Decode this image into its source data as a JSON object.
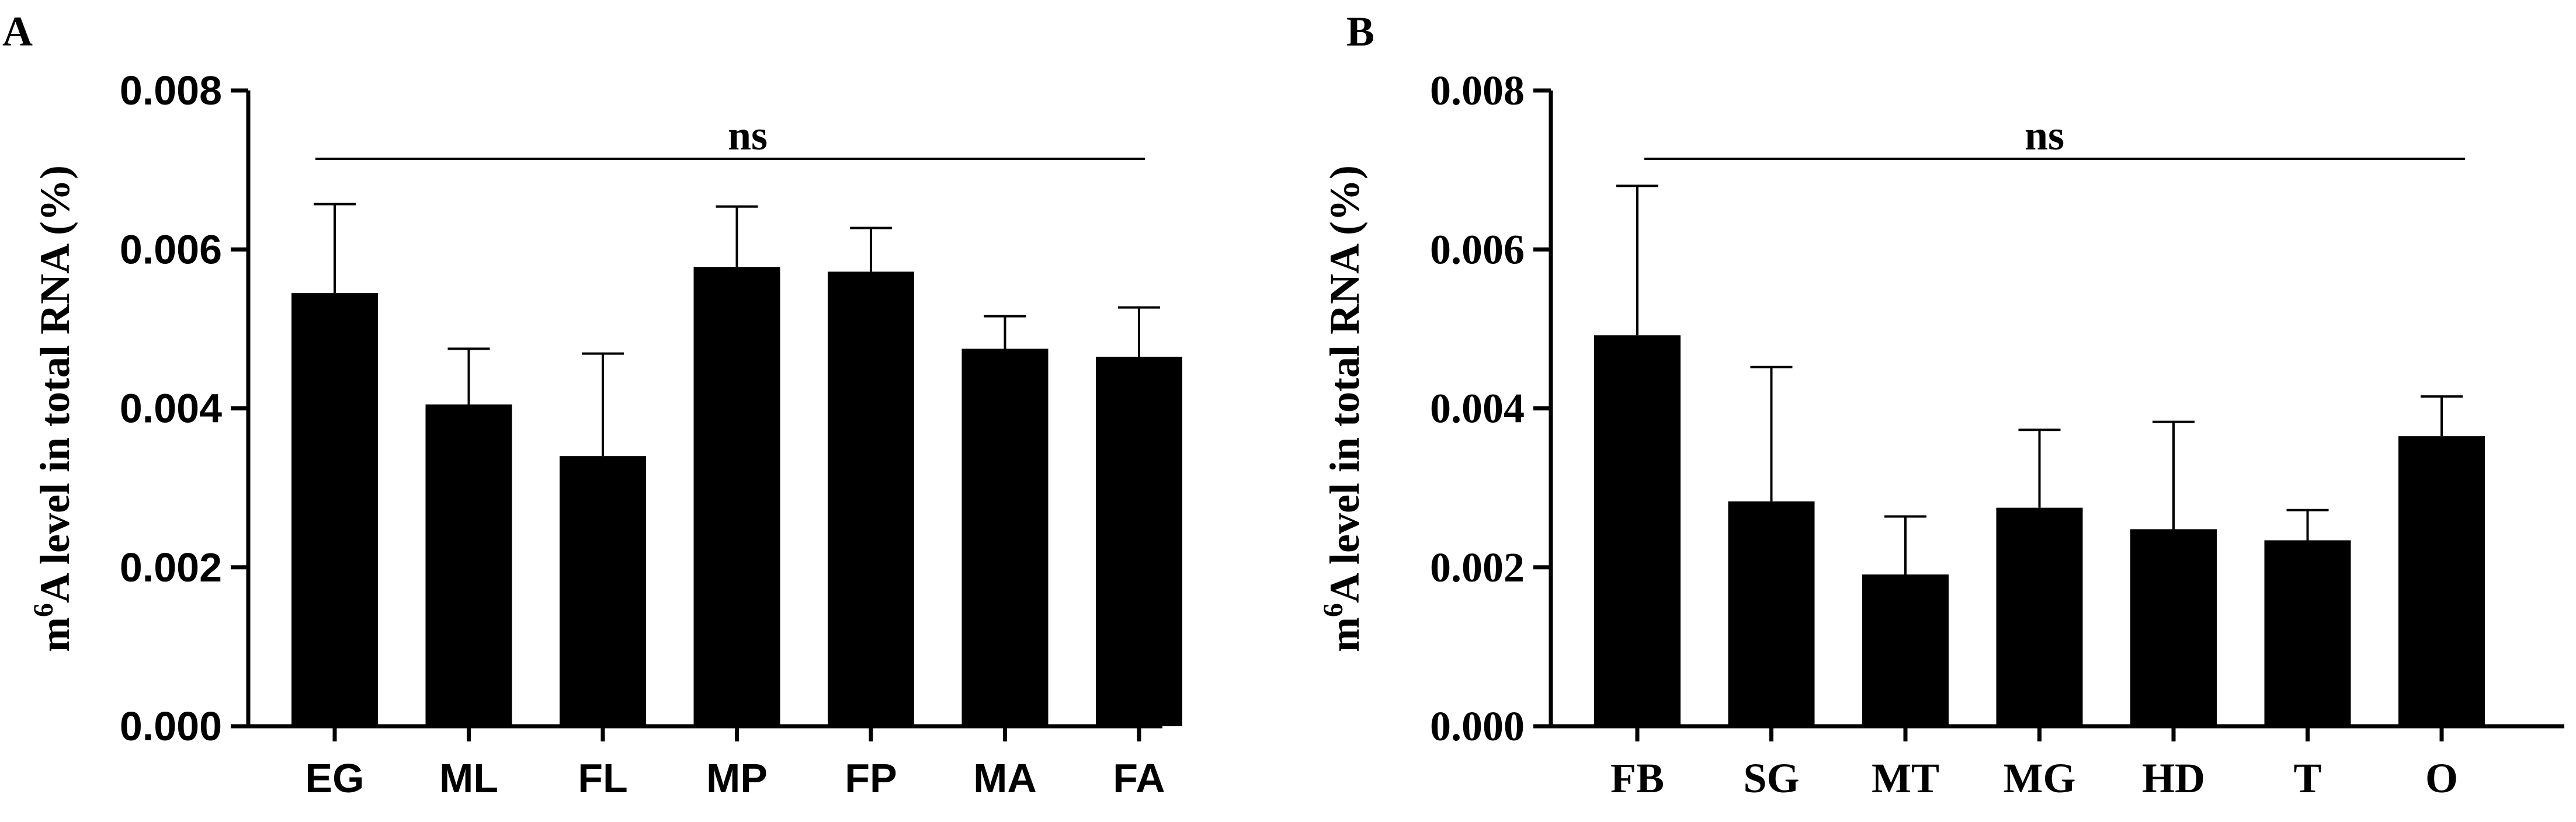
{
  "chart_data": [
    {
      "type": "bar",
      "panel_label": "A",
      "ylabel_prefix": "m",
      "ylabel_sup": "6",
      "ylabel_rest": "A level in total RNA (%)",
      "ylim": [
        0,
        0.008
      ],
      "yticks": [
        "0.000",
        "0.002",
        "0.004",
        "0.006",
        "0.008"
      ],
      "categories": [
        "EG",
        "ML",
        "FL",
        "MP",
        "FP",
        "MA",
        "FA"
      ],
      "values": [
        0.00545,
        0.00405,
        0.0034,
        0.00578,
        0.00572,
        0.00475,
        0.00465
      ],
      "error_upper": [
        0.00657,
        0.00475,
        0.00469,
        0.00654,
        0.00627,
        0.00516,
        0.00527
      ],
      "significance": "ns",
      "colors": {
        "bar": "#000000",
        "axis": "#000000"
      }
    },
    {
      "type": "bar",
      "panel_label": "B",
      "ylabel_prefix": "m",
      "ylabel_sup": "6",
      "ylabel_rest": "A level in total RNA (%)",
      "ylim": [
        0,
        0.008
      ],
      "yticks": [
        "0.000",
        "0.002",
        "0.004",
        "0.006",
        "0.008"
      ],
      "categories": [
        "FB",
        "SG",
        "MT",
        "MG",
        "HD",
        "T",
        "O"
      ],
      "values": [
        0.00492,
        0.00283,
        0.00191,
        0.00275,
        0.00248,
        0.00234,
        0.00365
      ],
      "error_upper": [
        0.0068,
        0.00452,
        0.00264,
        0.00373,
        0.00383,
        0.00272,
        0.00415
      ],
      "significance": "ns",
      "colors": {
        "bar": "#000000",
        "axis": "#000000"
      }
    }
  ]
}
